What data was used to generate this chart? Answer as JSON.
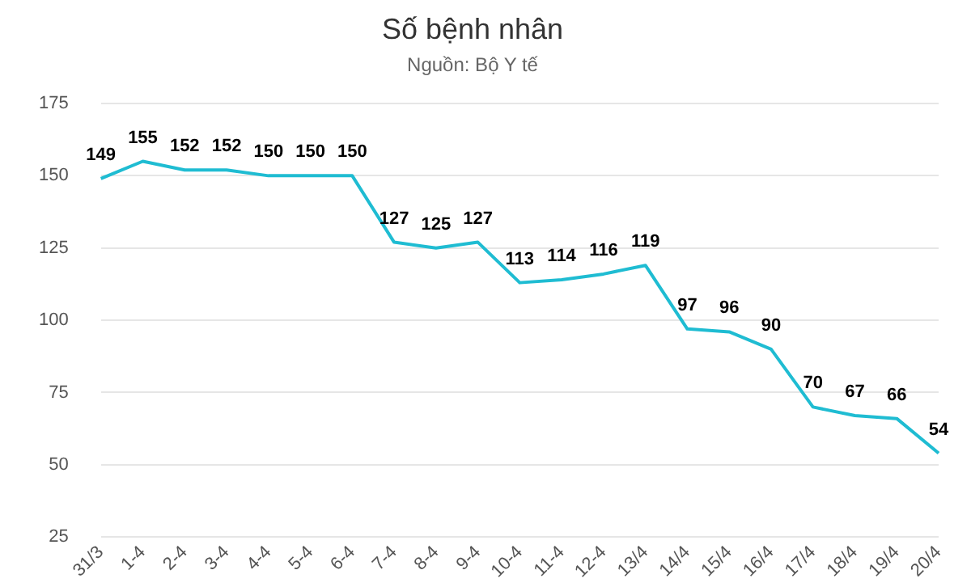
{
  "chart_data": {
    "type": "line",
    "title": "Số bệnh nhân",
    "subtitle": "Nguồn: Bộ Y tế",
    "categories": [
      "31/3",
      "1-4",
      "2-4",
      "3-4",
      "4-4",
      "5-4",
      "6-4",
      "7-4",
      "8-4",
      "9-4",
      "10-4",
      "11-4",
      "12-4",
      "13/4",
      "14/4",
      "15/4",
      "16/4",
      "17/4",
      "18/4",
      "19/4",
      "20/4"
    ],
    "values": [
      149,
      155,
      152,
      152,
      150,
      150,
      150,
      127,
      125,
      127,
      113,
      114,
      116,
      119,
      97,
      96,
      90,
      70,
      67,
      66,
      54
    ],
    "color": "#1fbcd2",
    "ylim": [
      25,
      175
    ],
    "yticks": [
      25,
      50,
      75,
      100,
      125,
      150,
      175
    ],
    "grid": "y",
    "legend": false,
    "marker": "none",
    "line_style": "solid",
    "data_labels": true
  }
}
